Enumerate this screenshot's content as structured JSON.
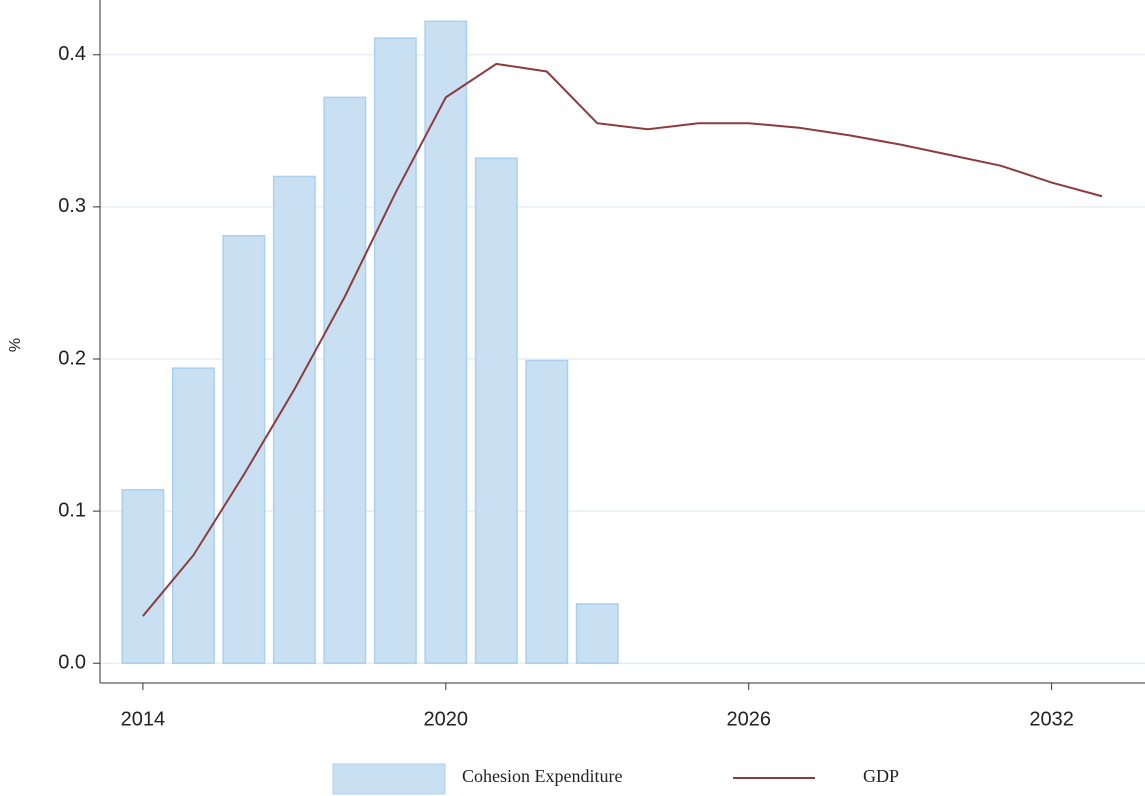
{
  "chart_data": {
    "type": "combo",
    "y_label": "%",
    "x": [
      2014,
      2015,
      2016,
      2017,
      2018,
      2019,
      2020,
      2021,
      2022,
      2023,
      2024,
      2025,
      2026,
      2027,
      2028,
      2029,
      2030,
      2031,
      2032,
      2033
    ],
    "series": [
      {
        "name": "Cohesion Expenditure",
        "type": "bar",
        "color": "#c9e0f3",
        "values": [
          0.114,
          0.194,
          0.281,
          0.32,
          0.372,
          0.411,
          0.422,
          0.332,
          0.199,
          0.039,
          null,
          null,
          null,
          null,
          null,
          null,
          null,
          null,
          null,
          null
        ]
      },
      {
        "name": "GDP",
        "type": "line",
        "color": "#8c3b3f",
        "values": [
          0.031,
          0.071,
          0.124,
          0.18,
          0.241,
          0.309,
          0.372,
          0.394,
          0.389,
          0.355,
          0.351,
          0.355,
          0.355,
          0.352,
          0.347,
          0.341,
          0.334,
          0.327,
          0.316,
          0.307
        ]
      }
    ],
    "xlim": [
      2013.15,
      2033.85
    ],
    "xticks": [
      2014,
      2020,
      2026,
      2032
    ],
    "ylim": [
      -0.013,
      0.436
    ],
    "yticks": [
      {
        "value": 0,
        "label": "0.0"
      },
      0.1,
      0.2,
      0.3,
      0.4
    ],
    "grid": true,
    "legend": "bottom"
  }
}
